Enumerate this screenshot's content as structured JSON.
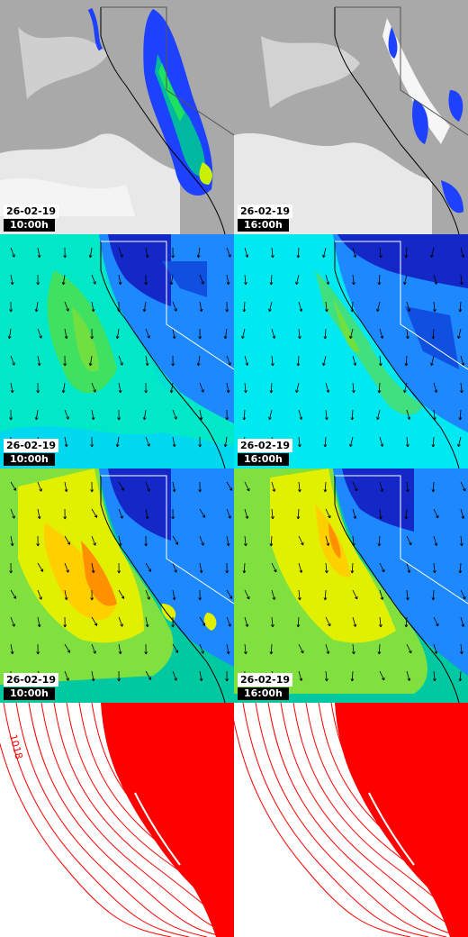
{
  "colors": {
    "precip_low": "#1e40ff",
    "precip_mid": "#00c060",
    "precip_high": "#c8f000",
    "cloud_grey": "#b4b4b4",
    "wind_low": "#1428c8",
    "wind_mid": "#00e8e8",
    "wind_high": "#ff9000",
    "isobar": "#ff0000"
  },
  "panels": [
    {
      "type": "precip-cloud",
      "date": "26-02-19",
      "time": "10:00h"
    },
    {
      "type": "precip-cloud",
      "date": "26-02-19",
      "time": "16:00h"
    },
    {
      "type": "wind-10m",
      "date": "26-02-19",
      "time": "10:00h"
    },
    {
      "type": "wind-10m",
      "date": "26-02-19",
      "time": "16:00h"
    },
    {
      "type": "wind-gust",
      "date": "26-02-19",
      "time": "10:00h"
    },
    {
      "type": "wind-gust",
      "date": "26-02-19",
      "time": "16:00h"
    },
    {
      "type": "pressure",
      "isobar_label": "1018"
    },
    {
      "type": "pressure"
    }
  ]
}
